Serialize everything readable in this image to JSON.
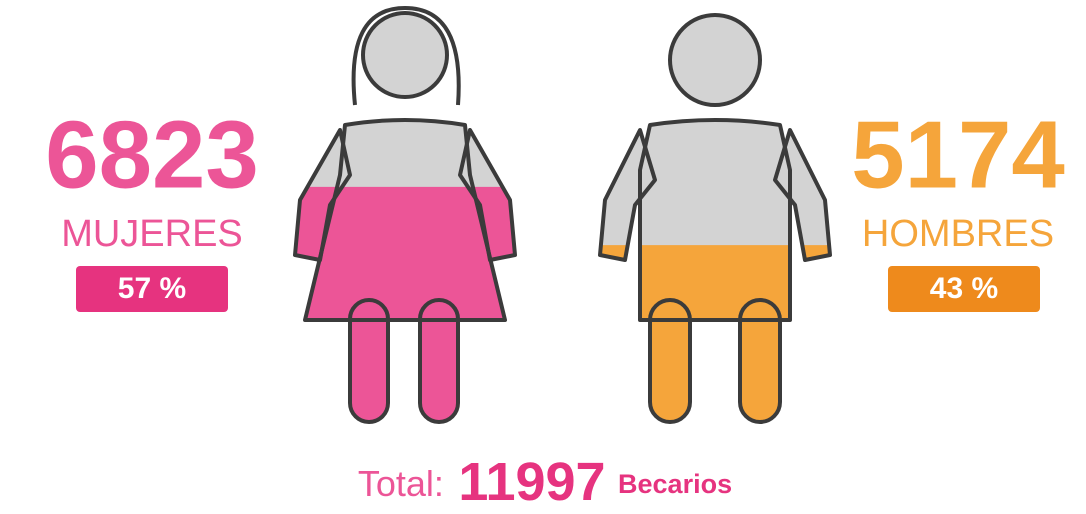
{
  "women": {
    "count": 6823,
    "label": "MUJERES",
    "percent": 57,
    "percent_label": "57 %",
    "color": "#ec5597"
  },
  "men": {
    "count": 5174,
    "label": "HOMBRES",
    "percent": 43,
    "percent_label": "43 %",
    "color": "#f5a53b"
  },
  "total": {
    "prefix": "Total:",
    "value": 11997,
    "unit": "Becarios"
  }
}
